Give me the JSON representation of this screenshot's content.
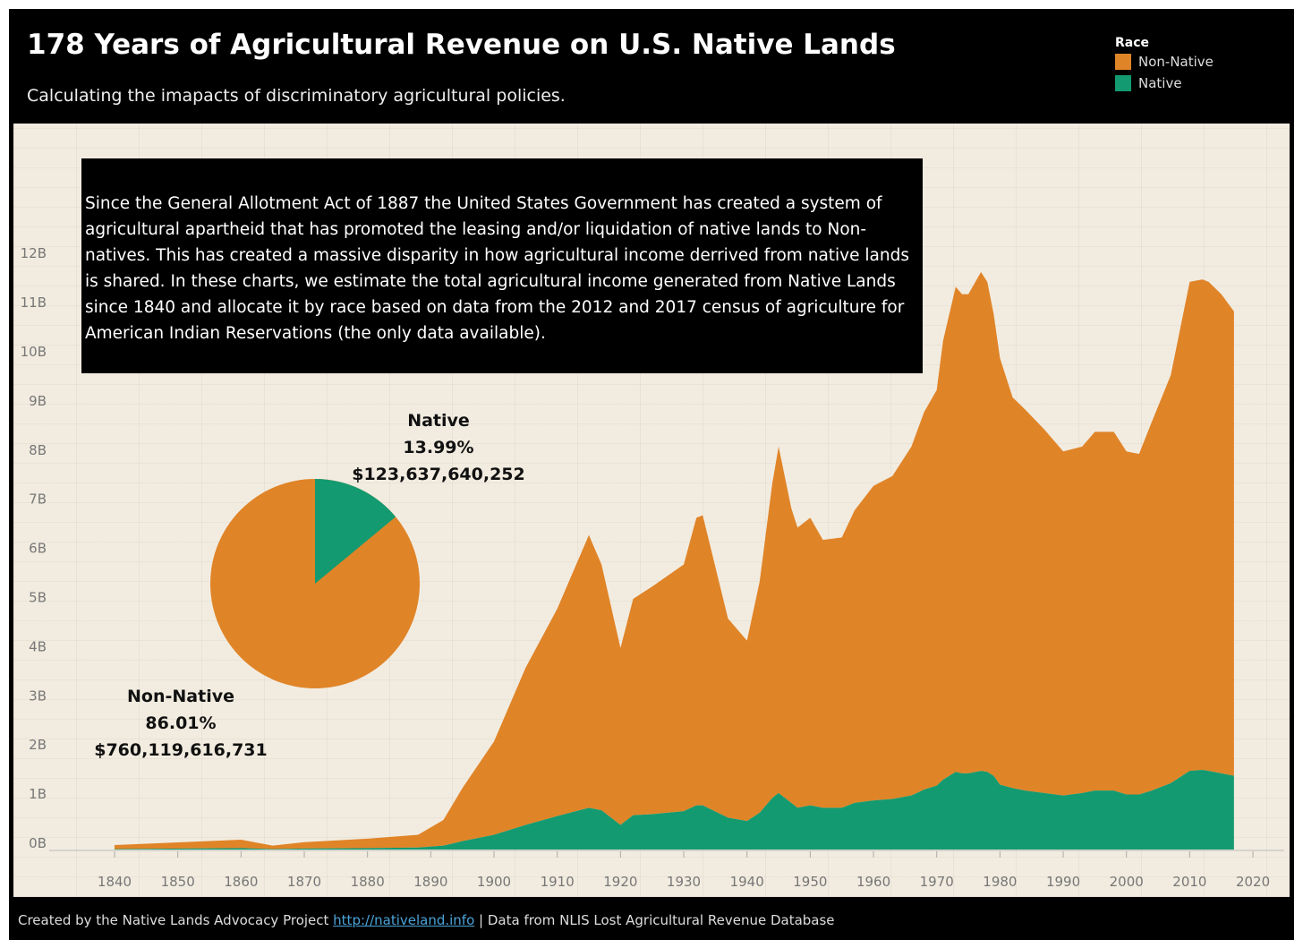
{
  "title": "178 Years of Agricultural Revenue on U.S. Native Lands",
  "subtitle": "Calculating the imapacts of discriminatory agricultural policies.",
  "legend": {
    "title": "Race",
    "items": [
      {
        "label": "Non-Native",
        "color": "#e08428"
      },
      {
        "label": "Native",
        "color": "#149a70"
      }
    ]
  },
  "note": "Since the General Allotment Act of 1887 the United States Government has created a system of agricultural apartheid that has promoted the leasing and/or liquidation of native lands to Non-natives. This has created a massive disparity in how agricultural income derrived from native lands is shared. In these charts, we estimate the total agricultural income generated from Native Lands since 1840 and allocate it by race based on data from the 2012 and 2017 census of agriculture for American Indian Reservations (the only data available).",
  "pie": {
    "native": {
      "label": "Native",
      "pct": "13.99%",
      "amount": "$123,637,640,252",
      "share": 0.1399
    },
    "non_native": {
      "label": "Non-Native",
      "pct": "86.01%",
      "amount": "$760,119,616,731",
      "share": 0.8601
    }
  },
  "footer": {
    "prefix": "Created by the Native Lands Advocacy Project ",
    "link": "http://nativeland.info",
    "suffix": " | Data from NLIS Lost Agricultural Revenue Database"
  },
  "chart_data": {
    "type": "area",
    "stacked": true,
    "xlim": [
      1835,
      2022
    ],
    "ylim": [
      0,
      12.5
    ],
    "x_ticks": [
      "1840",
      "1850",
      "1860",
      "1870",
      "1880",
      "1890",
      "1900",
      "1910",
      "1920",
      "1930",
      "1940",
      "1950",
      "1960",
      "1970",
      "1980",
      "1990",
      "2000",
      "2010",
      "2020"
    ],
    "y_ticks": [
      "0B",
      "1B",
      "2B",
      "3B",
      "4B",
      "5B",
      "6B",
      "7B",
      "8B",
      "9B",
      "10B",
      "11B",
      "12B"
    ],
    "x": [
      1840,
      1860,
      1865,
      1870,
      1880,
      1888,
      1892,
      1895,
      1900,
      1905,
      1910,
      1915,
      1917,
      1920,
      1922,
      1925,
      1930,
      1932,
      1933,
      1937,
      1940,
      1942,
      1944,
      1945,
      1947,
      1948,
      1950,
      1952,
      1955,
      1957,
      1960,
      1963,
      1966,
      1968,
      1970,
      1971,
      1973,
      1974,
      1975,
      1977,
      1978,
      1979,
      1980,
      1982,
      1984,
      1987,
      1990,
      1993,
      1995,
      1998,
      2000,
      2002,
      2004,
      2007,
      2010,
      2012,
      2013,
      2015,
      2017
    ],
    "series": [
      {
        "name": "Native",
        "color": "#149a70",
        "values": [
          0.01,
          0.03,
          0.01,
          0.02,
          0.03,
          0.04,
          0.08,
          0.17,
          0.3,
          0.5,
          0.68,
          0.85,
          0.8,
          0.5,
          0.7,
          0.72,
          0.78,
          0.9,
          0.9,
          0.65,
          0.58,
          0.75,
          1.05,
          1.15,
          0.95,
          0.85,
          0.9,
          0.85,
          0.85,
          0.95,
          1.0,
          1.03,
          1.1,
          1.22,
          1.3,
          1.42,
          1.58,
          1.55,
          1.55,
          1.6,
          1.58,
          1.5,
          1.32,
          1.25,
          1.2,
          1.15,
          1.1,
          1.15,
          1.2,
          1.2,
          1.12,
          1.12,
          1.2,
          1.35,
          1.6,
          1.62,
          1.6,
          1.55,
          1.5
        ]
      },
      {
        "name": "Non-Native",
        "color": "#e08428",
        "values": [
          0.08,
          0.17,
          0.07,
          0.13,
          0.19,
          0.26,
          0.52,
          1.08,
          1.9,
          3.2,
          4.22,
          5.55,
          5.0,
          3.6,
          4.4,
          4.63,
          5.02,
          5.85,
          5.9,
          4.05,
          3.67,
          4.7,
          6.4,
          7.05,
          6.0,
          5.7,
          5.85,
          5.45,
          5.5,
          5.95,
          6.4,
          6.57,
          7.1,
          7.68,
          8.05,
          8.93,
          9.87,
          9.75,
          9.75,
          10.15,
          9.97,
          9.4,
          8.68,
          7.95,
          7.75,
          7.4,
          7.0,
          7.05,
          7.3,
          7.3,
          6.98,
          6.93,
          7.5,
          8.3,
          9.95,
          9.98,
          9.95,
          9.75,
          9.45
        ]
      }
    ]
  }
}
